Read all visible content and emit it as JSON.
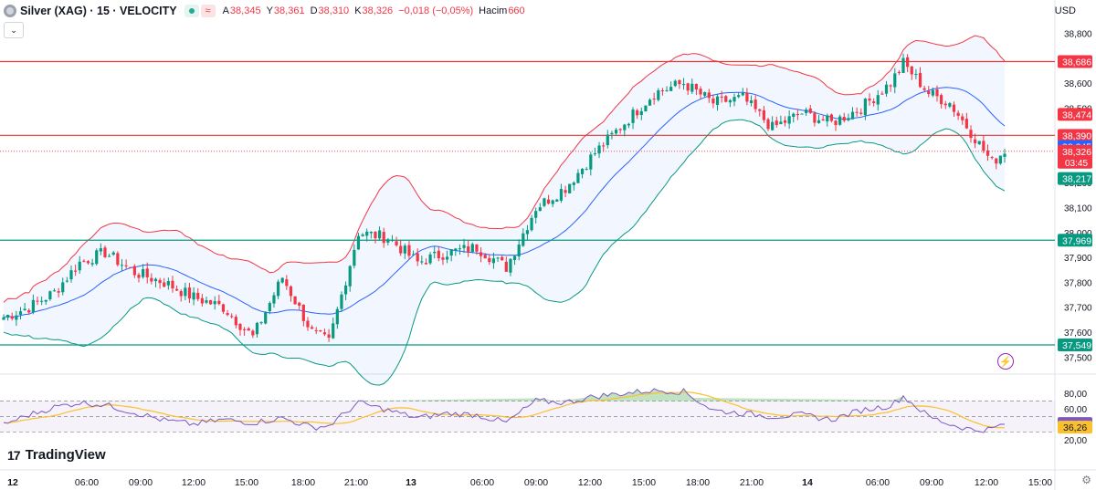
{
  "header": {
    "symbol": "Silver (XAG) · 15 · VELOCITY",
    "open_label": "A",
    "open": "38,345",
    "high_label": "Y",
    "high": "38,361",
    "low_label": "D",
    "low": "38,310",
    "close_label": "K",
    "close": "38,326",
    "change": "−0,018 (−0,05%)",
    "volume_label": "Hacim",
    "volume": "660"
  },
  "currency": "USD",
  "brand": "TradingView",
  "colors": {
    "up": "#089981",
    "down": "#f23645",
    "band_upper": "#f23645",
    "band_lower": "#089981",
    "basis": "#2962ff",
    "rsi": "#7e57c2",
    "rsi_ma": "#fbc02d",
    "hline_red": "#e53935",
    "hline_green": "#089981"
  },
  "price_axis": {
    "ticks": [
      "38,800",
      "38,700",
      "38,600",
      "38,500",
      "38,400",
      "38,300",
      "38,200",
      "38,100",
      "38,000",
      "37,900",
      "37,800",
      "37,700",
      "37,600",
      "37,500"
    ],
    "labels": [
      {
        "text": "38,686",
        "price": 38.686,
        "color": "#f23645"
      },
      {
        "text": "38,474",
        "price": 38.474,
        "color": "#f23645"
      },
      {
        "text": "38,390",
        "price": 38.39,
        "color": "#f23645"
      },
      {
        "text": "38,345",
        "price": 38.345,
        "color": "#2962ff"
      },
      {
        "text": "38,326",
        "price": 38.326,
        "color": "#f23645",
        "sub": "03:45"
      },
      {
        "text": "38,217",
        "price": 38.217,
        "color": "#089981"
      },
      {
        "text": "37,969",
        "price": 37.969,
        "color": "#089981"
      },
      {
        "text": "37,549",
        "price": 37.549,
        "color": "#089981"
      }
    ]
  },
  "horizontal_lines": [
    {
      "price": 38.686,
      "color": "red"
    },
    {
      "price": 38.39,
      "color": "red"
    },
    {
      "price": 37.969,
      "color": "green"
    },
    {
      "price": 37.549,
      "color": "green"
    }
  ],
  "rsi_axis": {
    "ticks": [
      "80,00",
      "60,00",
      "20,00"
    ],
    "labels": [
      {
        "text": "41,00",
        "value": 41.0,
        "color": "#7e57c2"
      },
      {
        "text": "36,26",
        "value": 36.26,
        "color": "#fbc02d"
      }
    ]
  },
  "time_axis": [
    "12",
    "06:00",
    "09:00",
    "12:00",
    "15:00",
    "18:00",
    "21:00",
    "13",
    "06:00",
    "09:00",
    "12:00",
    "15:00",
    "18:00",
    "21:00",
    "14",
    "06:00",
    "09:00",
    "12:00",
    "15:00"
  ],
  "chart_data": {
    "type": "candlestick",
    "y_range": [
      37.45,
      38.86
    ],
    "rsi_range": [
      14,
      87
    ],
    "anchors": [
      [
        0,
        37.66
      ],
      [
        6,
        37.7
      ],
      [
        12,
        37.76
      ],
      [
        18,
        37.88
      ],
      [
        24,
        37.92
      ],
      [
        31,
        37.84
      ],
      [
        38,
        37.8
      ],
      [
        45,
        37.74
      ],
      [
        52,
        37.7
      ],
      [
        59,
        37.58
      ],
      [
        66,
        37.82
      ],
      [
        73,
        37.6
      ],
      [
        77,
        37.56
      ],
      [
        84,
        38.0
      ],
      [
        91,
        37.98
      ],
      [
        98,
        37.88
      ],
      [
        105,
        37.92
      ],
      [
        112,
        37.94
      ],
      [
        119,
        37.86
      ],
      [
        126,
        38.1
      ],
      [
        133,
        38.18
      ],
      [
        140,
        38.32
      ],
      [
        147,
        38.44
      ],
      [
        154,
        38.56
      ],
      [
        161,
        38.6
      ],
      [
        168,
        38.52
      ],
      [
        175,
        38.54
      ],
      [
        182,
        38.42
      ],
      [
        189,
        38.48
      ],
      [
        196,
        38.44
      ],
      [
        203,
        38.5
      ],
      [
        210,
        38.6
      ],
      [
        213,
        38.68
      ],
      [
        219,
        38.56
      ],
      [
        224,
        38.52
      ],
      [
        230,
        38.38
      ],
      [
        234,
        38.28
      ],
      [
        237,
        38.33
      ]
    ],
    "rsi_anchors": [
      [
        0,
        40
      ],
      [
        6,
        52
      ],
      [
        12,
        62
      ],
      [
        18,
        68
      ],
      [
        24,
        65
      ],
      [
        31,
        55
      ],
      [
        38,
        45
      ],
      [
        45,
        40
      ],
      [
        52,
        46
      ],
      [
        59,
        42
      ],
      [
        66,
        48
      ],
      [
        73,
        36
      ],
      [
        77,
        38
      ],
      [
        84,
        68
      ],
      [
        91,
        58
      ],
      [
        98,
        48
      ],
      [
        105,
        54
      ],
      [
        112,
        52
      ],
      [
        119,
        42
      ],
      [
        126,
        70
      ],
      [
        133,
        68
      ],
      [
        140,
        76
      ],
      [
        147,
        80
      ],
      [
        154,
        84
      ],
      [
        161,
        82
      ],
      [
        168,
        58
      ],
      [
        175,
        54
      ],
      [
        182,
        50
      ],
      [
        189,
        52
      ],
      [
        196,
        46
      ],
      [
        203,
        58
      ],
      [
        210,
        64
      ],
      [
        213,
        76
      ],
      [
        219,
        50
      ],
      [
        224,
        40
      ],
      [
        230,
        32
      ],
      [
        234,
        34
      ],
      [
        237,
        41
      ]
    ]
  }
}
